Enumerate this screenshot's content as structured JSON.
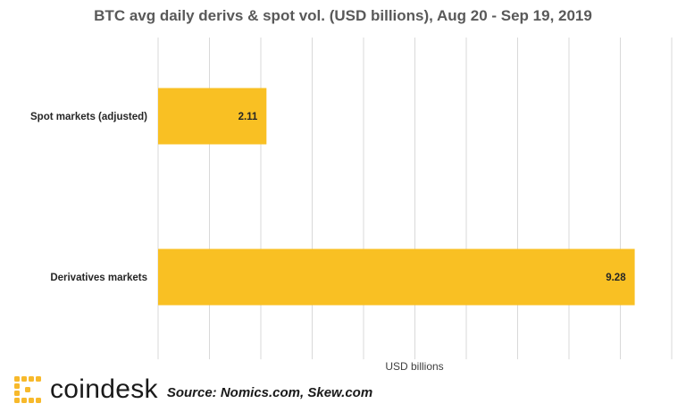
{
  "footer": {
    "brand": "coindesk",
    "source": "Source: Nomics.com, Skew.com",
    "brand_color": "#f7b92b",
    "logo_icon": "coindesk-logo-icon"
  },
  "chart_data": {
    "type": "bar",
    "orientation": "horizontal",
    "title": "BTC avg daily derivs & spot vol. (USD billions), Aug 20 - Sep 19, 2019",
    "xlabel": "USD billions",
    "ylabel": "",
    "categories": [
      "Spot markets (adjusted)",
      "Derivatives markets"
    ],
    "values": [
      2.11,
      9.28
    ],
    "value_labels": [
      "2.11",
      "9.28"
    ],
    "xlim": [
      0,
      10
    ],
    "grid": "vertical",
    "bar_color": "#f9c023",
    "legend": "none"
  }
}
